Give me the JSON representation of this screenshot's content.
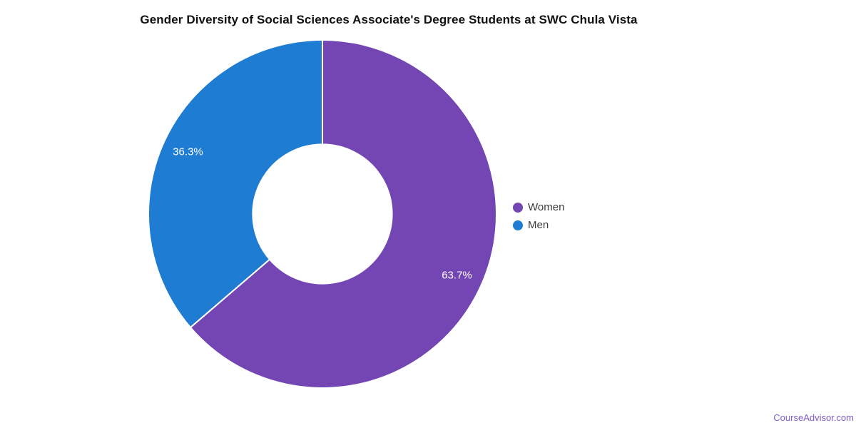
{
  "page": {
    "background_color": "#ffffff"
  },
  "chart_data": {
    "type": "pie",
    "subtype": "donut",
    "title": "Gender Diversity of Social Sciences Associate's Degree Students at SWC Chula Vista",
    "legend_position": "right",
    "start_position": "top",
    "direction": "clockwise",
    "inner_radius_ratio": 0.4,
    "slice_label_radius_ratio": 0.85,
    "slice_separator_color": "#ffffff",
    "slice_label_color": "#ffffff",
    "slices": [
      {
        "label": "Women",
        "value": 63.7,
        "display_label": "63.7%",
        "color": "#7446b4"
      },
      {
        "label": "Men",
        "value": 36.3,
        "display_label": "36.3%",
        "color": "#1e7cd2"
      }
    ]
  },
  "watermark": {
    "text": "CourseAdvisor.com",
    "color": "#7e5cc9"
  }
}
